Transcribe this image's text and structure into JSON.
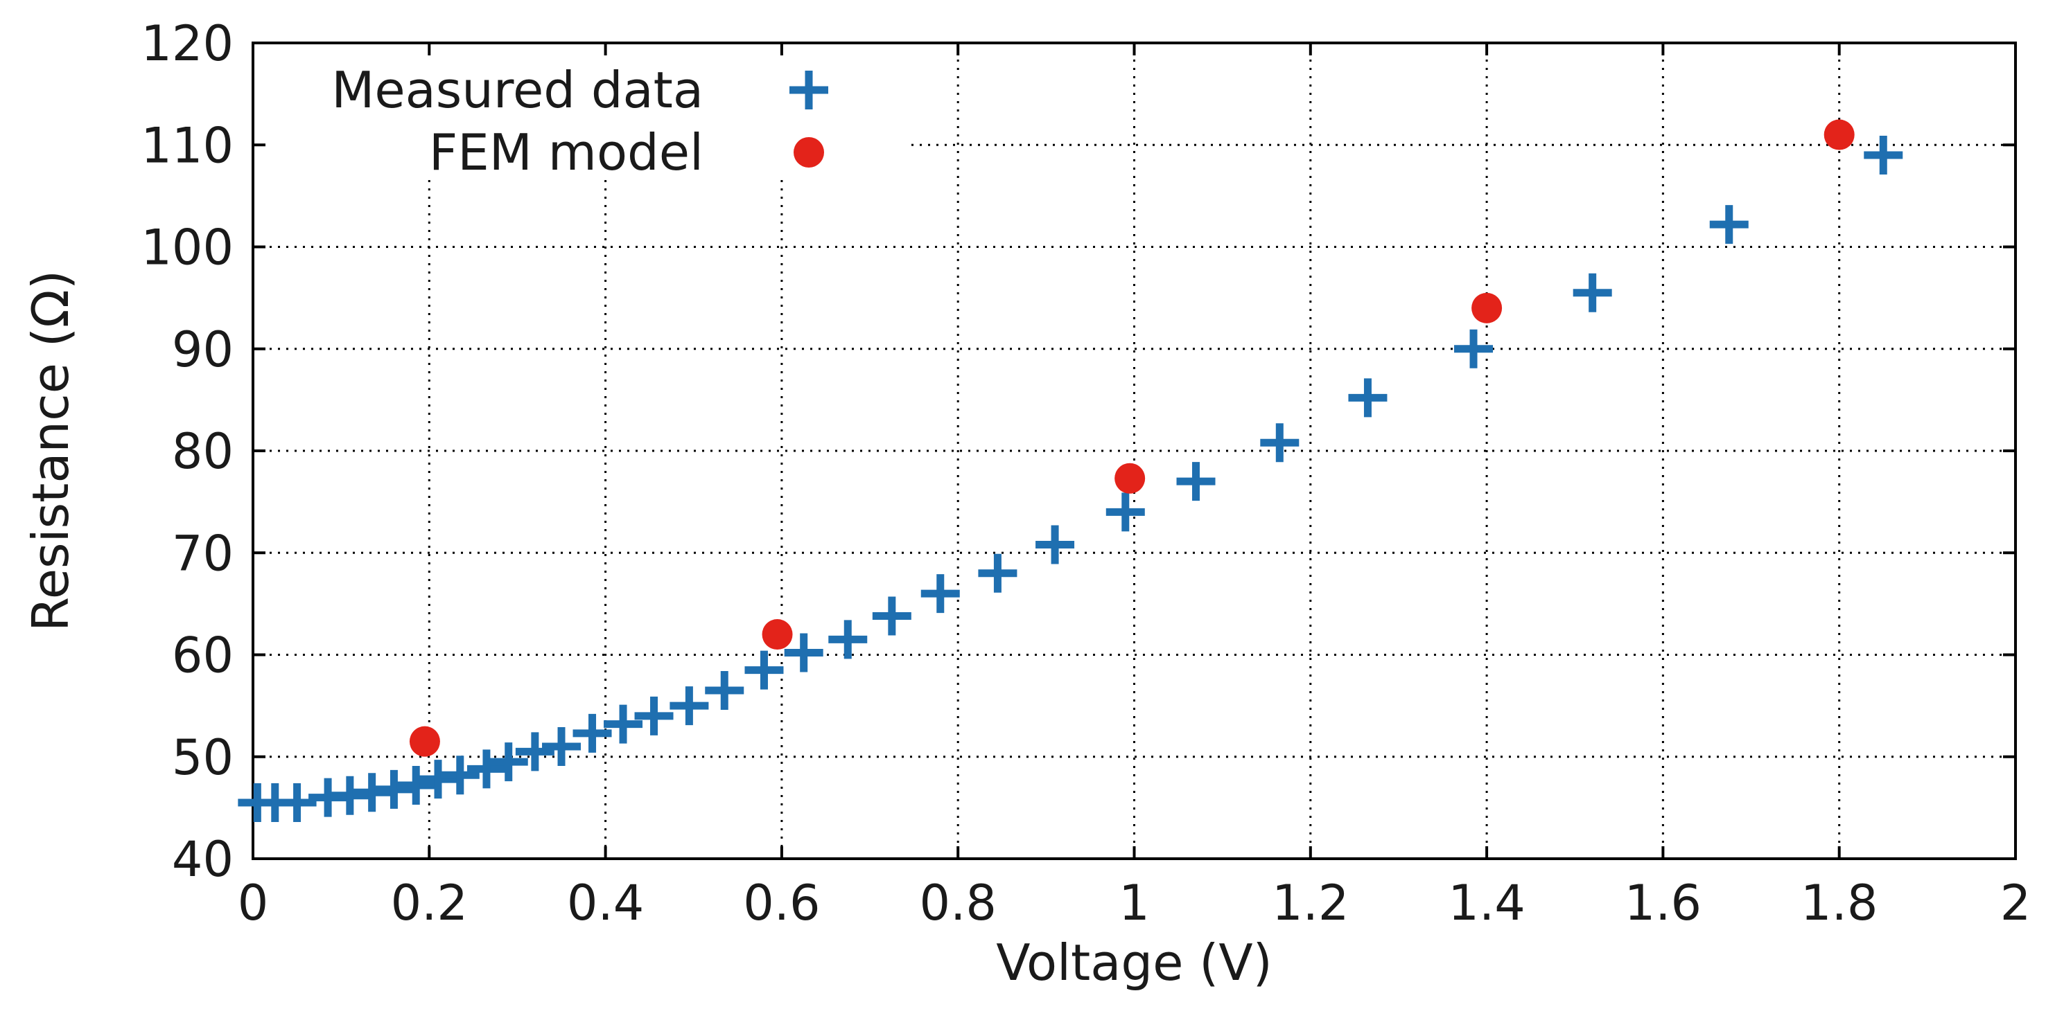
{
  "chart_data": {
    "type": "scatter",
    "title": "",
    "xlabel": "Voltage (V)",
    "ylabel": "Resistance (Ω)",
    "xlim": [
      0,
      2
    ],
    "ylim": [
      40,
      120
    ],
    "xticks": [
      0,
      0.2,
      0.4,
      0.6,
      0.8,
      1,
      1.2,
      1.4,
      1.6,
      1.8,
      2
    ],
    "xtick_labels": [
      "0",
      "0.2",
      "0.4",
      "0.6",
      "0.8",
      "1",
      "1.2",
      "1.4",
      "1.6",
      "1.8",
      "2"
    ],
    "yticks": [
      40,
      50,
      60,
      70,
      80,
      90,
      100,
      110,
      120
    ],
    "ytick_labels": [
      "40",
      "50",
      "60",
      "70",
      "80",
      "90",
      "100",
      "110",
      "120"
    ],
    "grid": true,
    "legend_position": "top-left",
    "series": [
      {
        "name": "Measured data",
        "marker": "plus",
        "color": "#1f6fb0",
        "x": [
          0.005,
          0.025,
          0.05,
          0.085,
          0.11,
          0.135,
          0.16,
          0.185,
          0.21,
          0.235,
          0.265,
          0.29,
          0.32,
          0.35,
          0.385,
          0.42,
          0.455,
          0.495,
          0.535,
          0.58,
          0.625,
          0.675,
          0.725,
          0.78,
          0.845,
          0.91,
          0.99,
          1.07,
          1.165,
          1.265,
          1.385,
          1.52,
          1.675,
          1.85
        ],
        "y": [
          45.5,
          45.5,
          45.5,
          46.0,
          46.2,
          46.5,
          46.8,
          47.2,
          47.8,
          48.2,
          48.8,
          49.5,
          50.5,
          51.0,
          52.3,
          53.2,
          54.0,
          55.0,
          56.5,
          58.5,
          60.2,
          61.5,
          63.8,
          66.0,
          68.0,
          70.8,
          74.0,
          77.0,
          80.8,
          85.2,
          90.0,
          95.5,
          102.2,
          109.0
        ]
      },
      {
        "name": "FEM model",
        "marker": "circle",
        "color": "#e3231a",
        "x": [
          0.195,
          0.595,
          0.995,
          1.4,
          1.8
        ],
        "y": [
          51.5,
          62.0,
          77.3,
          94.0,
          111.0
        ]
      }
    ]
  }
}
